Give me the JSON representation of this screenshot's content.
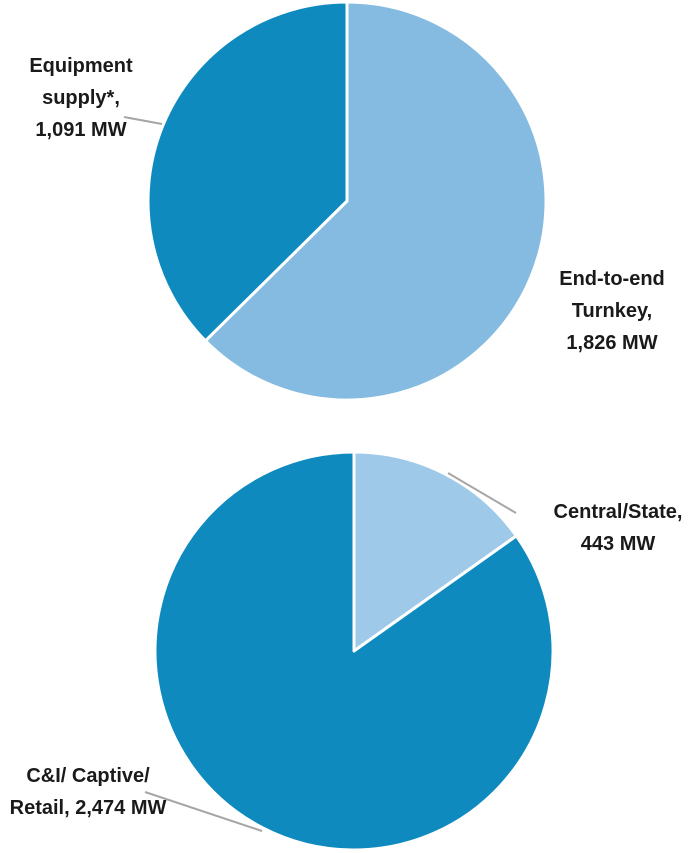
{
  "colors": {
    "dark_blue": "#0e8abf",
    "light_blue": "#85bbe0",
    "pale_blue": "#9ec9e8",
    "separator": "#ffffff",
    "leader_line": "#a6a6a6"
  },
  "chart_data": [
    {
      "type": "pie",
      "title": "",
      "unit": "MW",
      "slices": [
        {
          "label_lines": [
            "End-to-end",
            "Turnkey,",
            "1,826 MW"
          ],
          "value": 1826,
          "color": "#85bbe0"
        },
        {
          "label_lines": [
            "Equipment",
            "supply*,",
            "1,091 MW"
          ],
          "value": 1091,
          "color": "#0e8abf"
        }
      ]
    },
    {
      "type": "pie",
      "title": "",
      "unit": "MW",
      "slices": [
        {
          "label_lines": [
            "Central/State,",
            "443 MW"
          ],
          "value": 443,
          "color": "#9ec9e8"
        },
        {
          "label_lines": [
            "C&I/ Captive/",
            "Retail, 2,474 MW"
          ],
          "value": 2474,
          "color": "#0e8abf"
        }
      ]
    }
  ]
}
